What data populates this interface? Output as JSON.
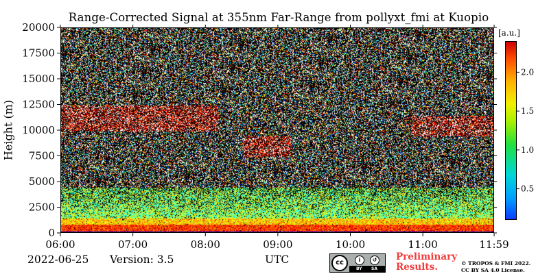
{
  "chart_data": {
    "type": "heatmap",
    "title": "Range-Corrected Signal at 355nm Far-Range from pollyxt_fmi at Kuopio",
    "ylabel": "Height (m)",
    "xlabel": "UTC",
    "x_ticks": [
      "06:00",
      "07:00",
      "08:00",
      "09:00",
      "10:00",
      "11:00",
      "11:59"
    ],
    "x_range_hours": [
      6.0,
      11.983
    ],
    "y_ticks": [
      0,
      2500,
      5000,
      7500,
      10000,
      12500,
      15000,
      17500,
      20000
    ],
    "ylim": [
      0,
      20000
    ],
    "colorbar": {
      "unit": "[a.u.]",
      "ticks": [
        0.5,
        1.0,
        1.5,
        2.0
      ],
      "tick_labels": [
        "0.5",
        "1.0",
        "1.5",
        "2.0"
      ],
      "range": [
        0.1,
        2.4
      ],
      "colormap": "jet"
    },
    "features": [
      {
        "feature": "boundary layer",
        "height_m": [
          0,
          1500
        ],
        "signal": "high"
      },
      {
        "feature": "cirrus cloud",
        "time": [
          "06:00",
          "08:10"
        ],
        "height_m": [
          10000,
          12500
        ]
      },
      {
        "feature": "cirrus cloud",
        "time": [
          "10:50",
          "11:59"
        ],
        "height_m": [
          9500,
          11500
        ]
      },
      {
        "feature": "cloud",
        "time": [
          "08:30",
          "09:10"
        ],
        "height_m": [
          7500,
          9500
        ]
      }
    ]
  },
  "footer": {
    "date": "2022-06-25",
    "version": "Version: 3.5",
    "preliminary_line1": "Preliminary",
    "preliminary_line2": "Results.",
    "copyright_line1": "© TROPOS & FMI 2022.",
    "copyright_line2": "CC BY SA 4.0 License.",
    "cc_badge": {
      "cc": "cc",
      "by": "BY",
      "sa": "SA"
    }
  },
  "colors": {
    "preliminary": "#f03c3c",
    "background": "#ffffff"
  }
}
